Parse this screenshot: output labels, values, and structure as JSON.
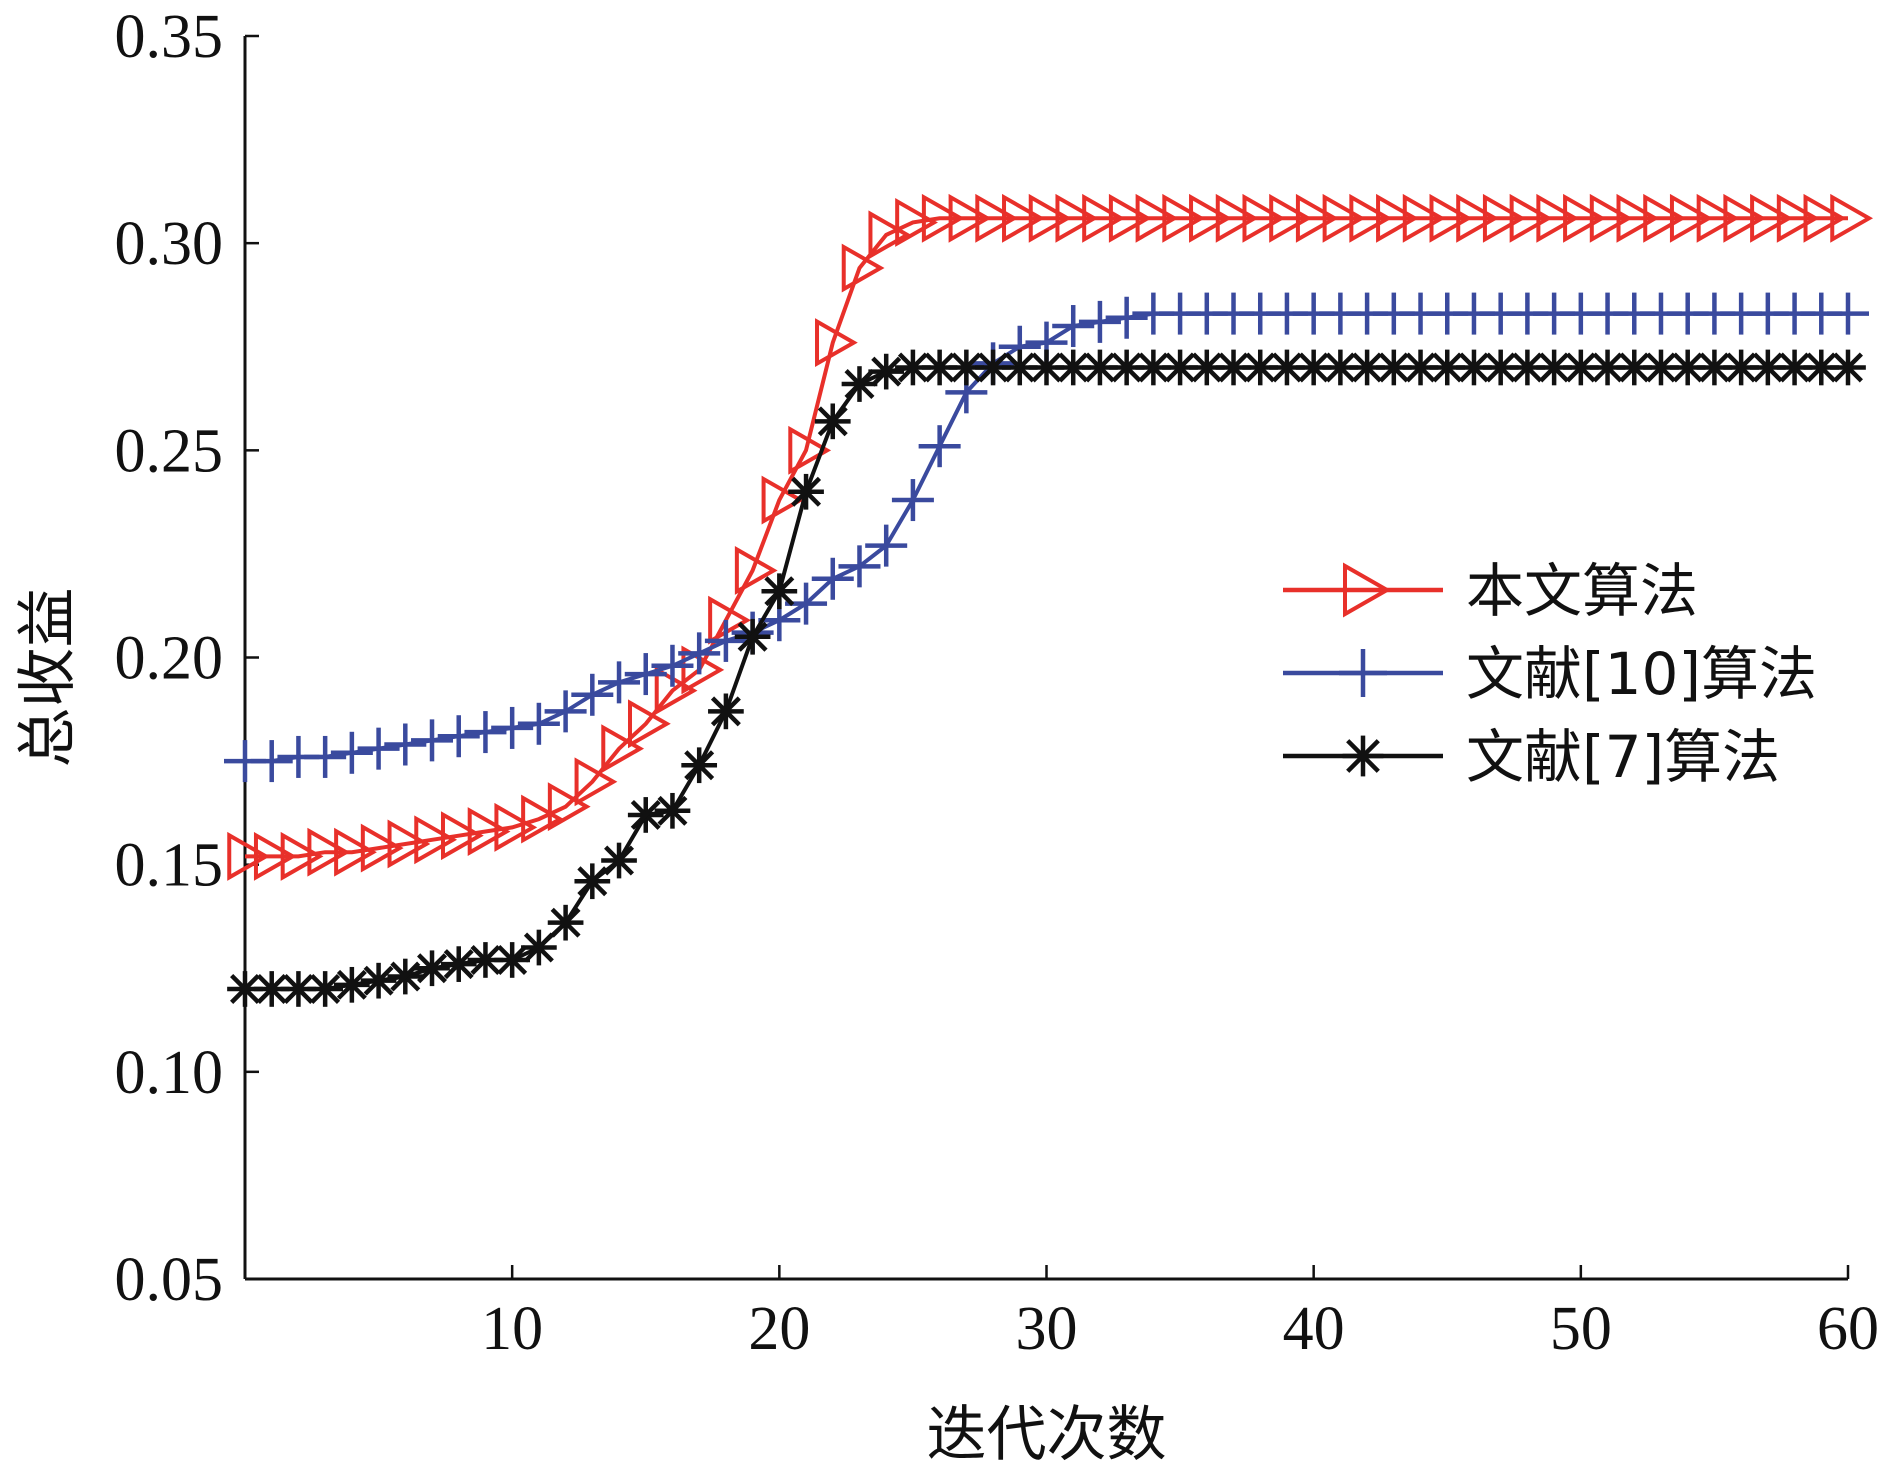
{
  "chart_data": {
    "type": "line",
    "title": "",
    "xlabel": "迭代次数",
    "ylabel": "总收益",
    "xlim": [
      0,
      60
    ],
    "ylim": [
      0.05,
      0.35
    ],
    "xticks": [
      10,
      20,
      30,
      40,
      50,
      60
    ],
    "xtick_labels": [
      "10",
      "20",
      "30",
      "40",
      "50",
      "60"
    ],
    "yticks": [
      0.05,
      0.1,
      0.15,
      0.2,
      0.25,
      0.3,
      0.35
    ],
    "ytick_labels": [
      "0.05",
      "0.10",
      "0.15",
      "0.20",
      "0.25",
      "0.30",
      "0.35"
    ],
    "grid": false,
    "legend_position": "right",
    "x": [
      0,
      1,
      2,
      3,
      4,
      5,
      6,
      7,
      8,
      9,
      10,
      11,
      12,
      13,
      14,
      15,
      16,
      17,
      18,
      19,
      20,
      21,
      22,
      23,
      24,
      25,
      26,
      27,
      28,
      29,
      30,
      31,
      32,
      33,
      34,
      35,
      36,
      37,
      38,
      39,
      40,
      41,
      42,
      43,
      44,
      45,
      46,
      47,
      48,
      49,
      50,
      51,
      52,
      53,
      54,
      55,
      56,
      57,
      58,
      59,
      60
    ],
    "series": [
      {
        "name": "本文算法",
        "color": "#e8302a",
        "marker": "triangle-right",
        "values": [
          0.152,
          0.152,
          0.152,
          0.153,
          0.153,
          0.154,
          0.155,
          0.156,
          0.157,
          0.158,
          0.159,
          0.161,
          0.164,
          0.17,
          0.178,
          0.184,
          0.192,
          0.197,
          0.209,
          0.221,
          0.238,
          0.25,
          0.276,
          0.294,
          0.302,
          0.305,
          0.306,
          0.306,
          0.306,
          0.306,
          0.306,
          0.306,
          0.306,
          0.306,
          0.306,
          0.306,
          0.306,
          0.306,
          0.306,
          0.306,
          0.306,
          0.306,
          0.306,
          0.306,
          0.306,
          0.306,
          0.306,
          0.306,
          0.306,
          0.306,
          0.306,
          0.306,
          0.306,
          0.306,
          0.306,
          0.306,
          0.306,
          0.306,
          0.306,
          0.306,
          0.306
        ]
      },
      {
        "name": "文献[10]算法",
        "color": "#3a4a9e",
        "marker": "plus",
        "values": [
          0.175,
          0.175,
          0.176,
          0.176,
          0.177,
          0.178,
          0.179,
          0.18,
          0.181,
          0.182,
          0.183,
          0.184,
          0.187,
          0.191,
          0.194,
          0.196,
          0.198,
          0.201,
          0.204,
          0.206,
          0.209,
          0.213,
          0.219,
          0.222,
          0.227,
          0.238,
          0.251,
          0.264,
          0.271,
          0.275,
          0.276,
          0.28,
          0.281,
          0.282,
          0.283,
          0.283,
          0.283,
          0.283,
          0.283,
          0.283,
          0.283,
          0.283,
          0.283,
          0.283,
          0.283,
          0.283,
          0.283,
          0.283,
          0.283,
          0.283,
          0.283,
          0.283,
          0.283,
          0.283,
          0.283,
          0.283,
          0.283,
          0.283,
          0.283,
          0.283,
          0.283
        ]
      },
      {
        "name": "文献[7]算法",
        "color": "#111111",
        "marker": "asterisk",
        "values": [
          0.12,
          0.12,
          0.12,
          0.12,
          0.121,
          0.122,
          0.123,
          0.125,
          0.126,
          0.127,
          0.127,
          0.13,
          0.136,
          0.146,
          0.151,
          0.162,
          0.163,
          0.174,
          0.187,
          0.205,
          0.216,
          0.24,
          0.257,
          0.266,
          0.269,
          0.27,
          0.27,
          0.27,
          0.27,
          0.27,
          0.27,
          0.27,
          0.27,
          0.27,
          0.27,
          0.27,
          0.27,
          0.27,
          0.27,
          0.27,
          0.27,
          0.27,
          0.27,
          0.27,
          0.27,
          0.27,
          0.27,
          0.27,
          0.27,
          0.27,
          0.27,
          0.27,
          0.27,
          0.27,
          0.27,
          0.27,
          0.27,
          0.27,
          0.27,
          0.27,
          0.27
        ]
      }
    ]
  }
}
